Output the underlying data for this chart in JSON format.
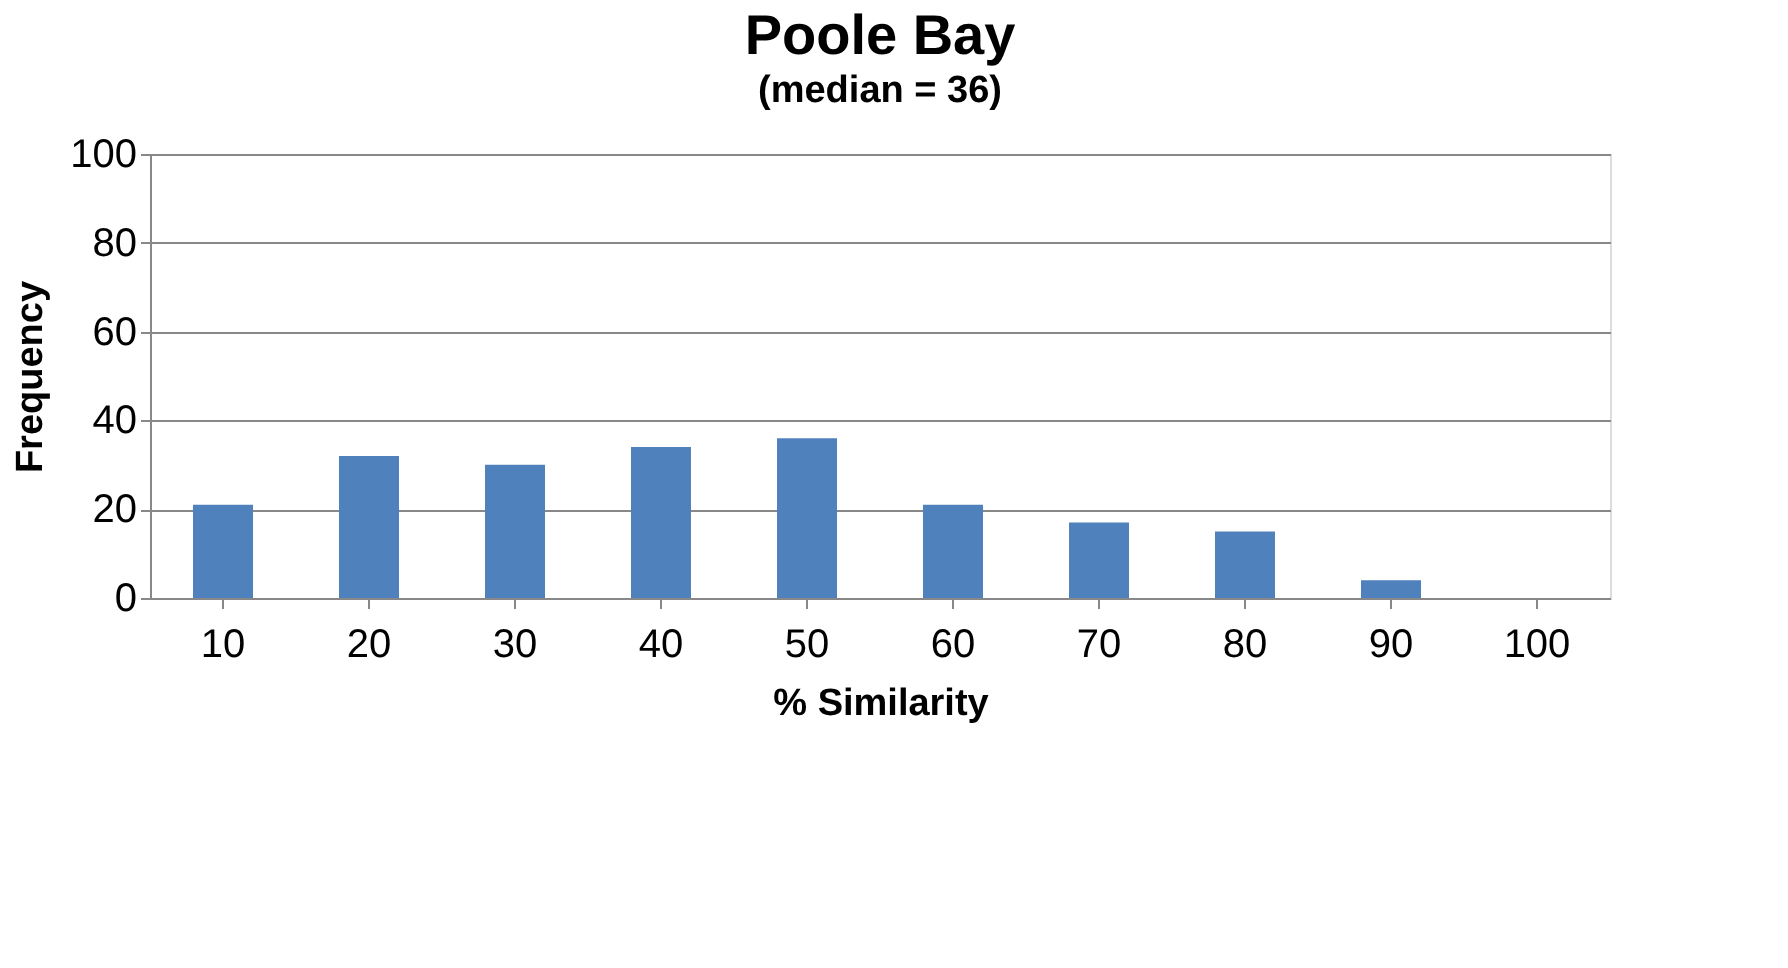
{
  "chart_data": {
    "type": "bar",
    "title": "Poole Bay",
    "subtitle": "(median = 36)",
    "xlabel": "% Similarity",
    "ylabel": "Frequency",
    "categories": [
      "10",
      "20",
      "30",
      "40",
      "50",
      "60",
      "70",
      "80",
      "90",
      "100"
    ],
    "values": [
      21,
      32,
      30,
      34,
      36,
      21,
      17,
      15,
      4,
      0
    ],
    "color": "#4f81bd",
    "ylim": [
      0,
      100
    ],
    "yticks": [
      0,
      20,
      40,
      60,
      80,
      100
    ],
    "grid": "y"
  }
}
